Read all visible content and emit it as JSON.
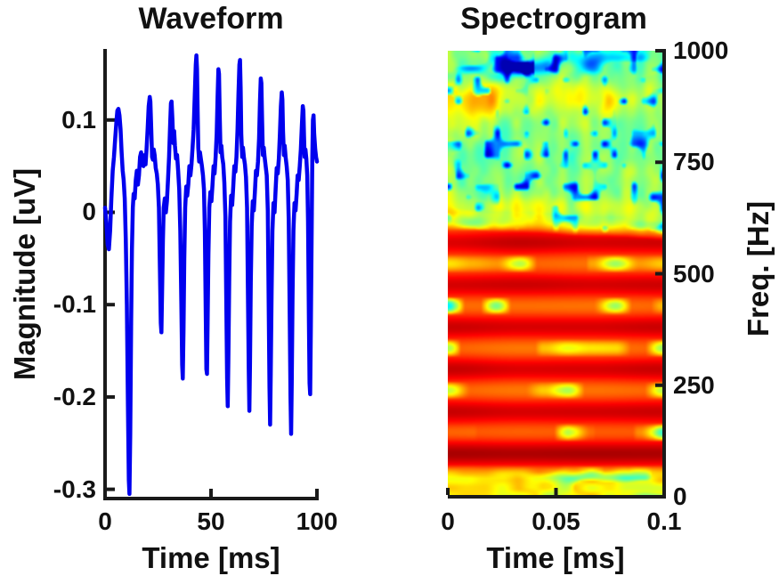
{
  "figure": {
    "background": "#ffffff",
    "text_color": "#111111",
    "axis_color": "#1a1a1a"
  },
  "chart_data": [
    {
      "id": "waveform",
      "type": "line",
      "title": "Waveform",
      "xlabel": "Time [ms]",
      "ylabel": "Magnitude [uV]",
      "xlim": [
        0,
        100
      ],
      "ylim": [
        -0.31,
        0.175
      ],
      "grid": false,
      "xticks": {
        "values": [
          0,
          50,
          100
        ],
        "labels": [
          "0",
          "50",
          "100"
        ]
      },
      "yticks": {
        "values": [
          0.1,
          0,
          -0.1,
          -0.2,
          -0.3
        ],
        "labels": [
          "0.1",
          "0",
          "-0.1",
          "-0.2",
          "-0.3"
        ]
      },
      "line_color": "#0000EE",
      "line_width": 4.5,
      "points": [
        [
          0,
          0.005
        ],
        [
          0.6,
          -0.01
        ],
        [
          1.2,
          -0.035
        ],
        [
          1.8,
          -0.04
        ],
        [
          2.4,
          -0.02
        ],
        [
          3,
          0.015
        ],
        [
          3.6,
          0.045
        ],
        [
          4.2,
          0.06
        ],
        [
          4.8,
          0.08
        ],
        [
          5.4,
          0.1
        ],
        [
          5.8,
          0.11
        ],
        [
          6.3,
          0.112
        ],
        [
          6.8,
          0.105
        ],
        [
          7.3,
          0.09
        ],
        [
          7.8,
          0.065
        ],
        [
          8.3,
          0.045
        ],
        [
          8.8,
          0.035
        ],
        [
          9.3,
          0.015
        ],
        [
          9.8,
          -0.03
        ],
        [
          10.3,
          -0.1
        ],
        [
          10.8,
          -0.21
        ],
        [
          11.2,
          -0.29
        ],
        [
          11.5,
          -0.305
        ],
        [
          11.9,
          -0.24
        ],
        [
          12.3,
          -0.12
        ],
        [
          12.7,
          -0.04
        ],
        [
          13.1,
          0.005
        ],
        [
          13.5,
          0.02
        ],
        [
          14,
          0.015
        ],
        [
          14.5,
          0.035
        ],
        [
          15,
          0.045
        ],
        [
          15.5,
          0.03
        ],
        [
          16,
          0.04
        ],
        [
          16.5,
          0.06
        ],
        [
          17,
          0.065
        ],
        [
          17.5,
          0.055
        ],
        [
          18.1,
          0.05
        ],
        [
          18.6,
          0.062
        ],
        [
          19.1,
          0.052
        ],
        [
          19.6,
          0.068
        ],
        [
          20.1,
          0.09
        ],
        [
          20.6,
          0.115
        ],
        [
          21.1,
          0.125
        ],
        [
          21.4,
          0.12
        ],
        [
          21.8,
          0.09
        ],
        [
          22.2,
          0.06
        ],
        [
          22.6,
          0.057
        ],
        [
          23,
          0.068
        ],
        [
          23.4,
          0.062
        ],
        [
          23.9,
          0.048
        ],
        [
          24.4,
          0.042
        ],
        [
          24.9,
          0.03
        ],
        [
          25.4,
          0.005
        ],
        [
          25.9,
          -0.06
        ],
        [
          26.3,
          -0.12
        ],
        [
          26.6,
          -0.13
        ],
        [
          26.9,
          -0.09
        ],
        [
          27.3,
          -0.03
        ],
        [
          27.7,
          0.005
        ],
        [
          28.2,
          0.015
        ],
        [
          28.7,
          0
        ],
        [
          29.2,
          0.012
        ],
        [
          29.7,
          0.035
        ],
        [
          30.2,
          0.06
        ],
        [
          30.7,
          0.095
        ],
        [
          31.1,
          0.118
        ],
        [
          31.4,
          0.12
        ],
        [
          31.8,
          0.1
        ],
        [
          32.2,
          0.075
        ],
        [
          32.6,
          0.088
        ],
        [
          33,
          0.072
        ],
        [
          33.5,
          0.058
        ],
        [
          34,
          0.062
        ],
        [
          34.5,
          0.045
        ],
        [
          35,
          0.025
        ],
        [
          35.5,
          -0.02
        ],
        [
          36,
          -0.1
        ],
        [
          36.4,
          -0.165
        ],
        [
          36.7,
          -0.18
        ],
        [
          37,
          -0.13
        ],
        [
          37.4,
          -0.05
        ],
        [
          37.8,
          0.005
        ],
        [
          38.3,
          0.028
        ],
        [
          38.8,
          0.018
        ],
        [
          39.3,
          0.03
        ],
        [
          39.8,
          0.05
        ],
        [
          40.3,
          0.04
        ],
        [
          40.8,
          0.052
        ],
        [
          41.3,
          0.07
        ],
        [
          41.8,
          0.09
        ],
        [
          42.3,
          0.125
        ],
        [
          42.8,
          0.16
        ],
        [
          43.1,
          0.17
        ],
        [
          43.4,
          0.155
        ],
        [
          43.7,
          0.11
        ],
        [
          44,
          0.07
        ],
        [
          44.4,
          0.055
        ],
        [
          44.8,
          0.065
        ],
        [
          45.2,
          0.058
        ],
        [
          45.7,
          0.05
        ],
        [
          46.2,
          0.04
        ],
        [
          46.7,
          0.025
        ],
        [
          47.1,
          -0.02
        ],
        [
          47.5,
          -0.11
        ],
        [
          47.8,
          -0.17
        ],
        [
          48.1,
          -0.175
        ],
        [
          48.4,
          -0.12
        ],
        [
          48.8,
          -0.045
        ],
        [
          49.2,
          0.005
        ],
        [
          49.7,
          0.022
        ],
        [
          50.2,
          0.012
        ],
        [
          50.7,
          0.03
        ],
        [
          51.2,
          0.05
        ],
        [
          51.7,
          0.042
        ],
        [
          52.2,
          0.06
        ],
        [
          52.7,
          0.085
        ],
        [
          53.1,
          0.125
        ],
        [
          53.5,
          0.155
        ],
        [
          53.8,
          0.15
        ],
        [
          54.1,
          0.105
        ],
        [
          54.5,
          0.065
        ],
        [
          54.9,
          0.072
        ],
        [
          55.3,
          0.06
        ],
        [
          55.8,
          0.052
        ],
        [
          56.3,
          0.032
        ],
        [
          56.8,
          -0.005
        ],
        [
          57.2,
          -0.09
        ],
        [
          57.6,
          -0.18
        ],
        [
          57.9,
          -0.21
        ],
        [
          58.2,
          -0.16
        ],
        [
          58.6,
          -0.07
        ],
        [
          59,
          -0.01
        ],
        [
          59.5,
          0.018
        ],
        [
          60,
          0.008
        ],
        [
          60.5,
          0.028
        ],
        [
          61,
          0.05
        ],
        [
          61.5,
          0.044
        ],
        [
          62,
          0.06
        ],
        [
          62.5,
          0.09
        ],
        [
          63,
          0.13
        ],
        [
          63.4,
          0.16
        ],
        [
          63.7,
          0.165
        ],
        [
          64,
          0.135
        ],
        [
          64.3,
          0.085
        ],
        [
          64.7,
          0.06
        ],
        [
          65.1,
          0.07
        ],
        [
          65.5,
          0.06
        ],
        [
          66,
          0.052
        ],
        [
          66.5,
          0.038
        ],
        [
          67,
          0.005
        ],
        [
          67.4,
          -0.08
        ],
        [
          67.8,
          -0.17
        ],
        [
          68.1,
          -0.215
        ],
        [
          68.4,
          -0.165
        ],
        [
          68.8,
          -0.075
        ],
        [
          69.2,
          -0.015
        ],
        [
          69.7,
          0.012
        ],
        [
          70.2,
          0.002
        ],
        [
          70.7,
          0.022
        ],
        [
          71.2,
          0.045
        ],
        [
          71.7,
          0.04
        ],
        [
          72.2,
          0.055
        ],
        [
          72.7,
          0.08
        ],
        [
          73.1,
          0.12
        ],
        [
          73.5,
          0.145
        ],
        [
          73.8,
          0.14
        ],
        [
          74.1,
          0.1
        ],
        [
          74.5,
          0.062
        ],
        [
          74.9,
          0.07
        ],
        [
          75.3,
          0.06
        ],
        [
          75.8,
          0.05
        ],
        [
          76.3,
          0.04
        ],
        [
          76.8,
          0.002
        ],
        [
          77.2,
          -0.09
        ],
        [
          77.6,
          -0.19
        ],
        [
          77.9,
          -0.23
        ],
        [
          78.2,
          -0.175
        ],
        [
          78.6,
          -0.085
        ],
        [
          79,
          -0.02
        ],
        [
          79.5,
          0.01
        ],
        [
          80,
          0
        ],
        [
          80.5,
          0.025
        ],
        [
          81,
          0.048
        ],
        [
          81.5,
          0.042
        ],
        [
          82,
          0.058
        ],
        [
          82.5,
          0.085
        ],
        [
          83,
          0.115
        ],
        [
          83.4,
          0.13
        ],
        [
          83.7,
          0.122
        ],
        [
          84,
          0.088
        ],
        [
          84.4,
          0.062
        ],
        [
          84.8,
          0.072
        ],
        [
          85.2,
          0.06
        ],
        [
          85.7,
          0.05
        ],
        [
          86.2,
          0.035
        ],
        [
          86.7,
          -0.008
        ],
        [
          87.1,
          -0.1
        ],
        [
          87.5,
          -0.2
        ],
        [
          87.8,
          -0.24
        ],
        [
          88.1,
          -0.185
        ],
        [
          88.5,
          -0.09
        ],
        [
          88.9,
          -0.02
        ],
        [
          89.4,
          0.01
        ],
        [
          89.9,
          0.002
        ],
        [
          90.4,
          0.02
        ],
        [
          90.9,
          0.04
        ],
        [
          91.4,
          0.035
        ],
        [
          91.9,
          0.05
        ],
        [
          92.4,
          0.068
        ],
        [
          92.9,
          0.095
        ],
        [
          93.3,
          0.115
        ],
        [
          93.6,
          0.11
        ],
        [
          93.9,
          0.082
        ],
        [
          94.2,
          0.06
        ],
        [
          94.6,
          0.068
        ],
        [
          95,
          0.058
        ],
        [
          95.4,
          0.04
        ],
        [
          95.8,
          -0.01
        ],
        [
          96.2,
          -0.12
        ],
        [
          96.5,
          -0.185
        ],
        [
          96.8,
          -0.197
        ],
        [
          97.1,
          -0.13
        ],
        [
          97.5,
          -0.03
        ],
        [
          97.8,
          0.06
        ],
        [
          98.1,
          0.1
        ],
        [
          98.4,
          0.105
        ],
        [
          98.7,
          0.085
        ],
        [
          99.2,
          0.068
        ],
        [
          99.6,
          0.06
        ],
        [
          100,
          0.055
        ]
      ]
    },
    {
      "id": "spectrogram",
      "type": "heatmap",
      "title": "Spectrogram",
      "xlabel": "Time [ms]",
      "ylabel": "Freq. [Hz]",
      "xlim": [
        0,
        0.1
      ],
      "ylim": [
        0,
        1000
      ],
      "xticks": {
        "values": [
          0,
          0.05,
          0.1
        ],
        "labels": [
          "0",
          "0.05",
          "0.1"
        ]
      },
      "yticks": {
        "values": [
          1000,
          750,
          500,
          250,
          0
        ],
        "labels": [
          "1000",
          "750",
          "500",
          "250",
          "0"
        ]
      },
      "colormap": "jet",
      "model": {
        "fundamental_hz": 95,
        "high_power_max_hz": 625,
        "boundary_slope_hz": -25,
        "red_base_value": 0.845,
        "harmonic_contrast": 0.075,
        "green_base_value": 0.5,
        "yellow_band_hz": 893,
        "mid_yellow_band_hz": 645,
        "top_blue_blob_hz": 972,
        "low_band_max_hz": 55,
        "seed": 7
      },
      "description": "High power (red/dark-red) below ~620 Hz with harmonic banding every ~95 Hz and intermittent yellow-green valley streaks; moderate power (green with sparse blue speckles) above ~620 Hz; yellow band near 890 Hz strongest at early times; low-power yellow/green band at 0-55 Hz with cyan patches after t=0.04."
    }
  ],
  "layout_text": {
    "left_title": "Waveform",
    "right_title": "Spectrogram",
    "left_xlabel": "Time [ms]",
    "right_xlabel": "Time [ms]",
    "left_ylabel": "Magnitude [uV]",
    "right_ylabel": "Freq. [Hz]"
  }
}
